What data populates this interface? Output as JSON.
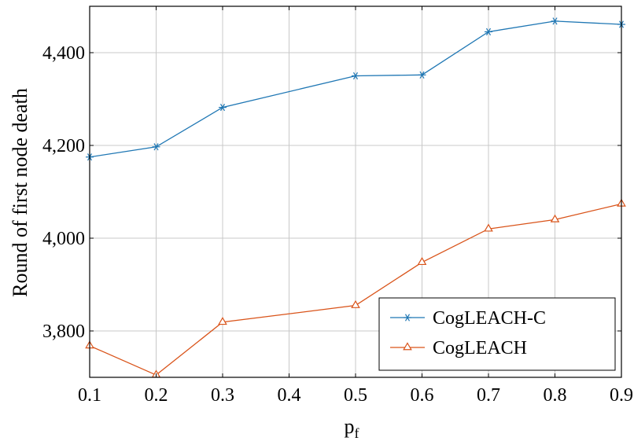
{
  "chart_data": {
    "type": "line",
    "title": "",
    "xlabel": "p",
    "xlabel_subscript": "f",
    "ylabel": "Round of first node death",
    "x": [
      0.1,
      0.2,
      0.3,
      0.5,
      0.6,
      0.7,
      0.8,
      0.9
    ],
    "xlim": [
      0.1,
      0.9
    ],
    "ylim": [
      3700,
      4500
    ],
    "xticks": [
      0.1,
      0.2,
      0.3,
      0.4,
      0.5,
      0.6,
      0.7,
      0.8,
      0.9
    ],
    "xtick_labels": [
      "0.1",
      "0.2",
      "0.3",
      "0.4",
      "0.5",
      "0.6",
      "0.7",
      "0.8",
      "0.9"
    ],
    "yticks": [
      3800,
      4000,
      4200,
      4400
    ],
    "ytick_labels": [
      "3,800",
      "4,000",
      "4,200",
      "4,400"
    ],
    "grid": true,
    "legend_position": "bottom-right",
    "series": [
      {
        "name": "CogLEACH-C",
        "color": "#1f77b4",
        "marker": "asterisk",
        "values": [
          4175,
          4197,
          4282,
          4350,
          4352,
          4445,
          4468,
          4461
        ]
      },
      {
        "name": "CogLEACH",
        "color": "#d95319",
        "marker": "triangle",
        "values": [
          3768,
          3705,
          3819,
          3855,
          3948,
          4020,
          4040,
          4074
        ]
      }
    ]
  }
}
